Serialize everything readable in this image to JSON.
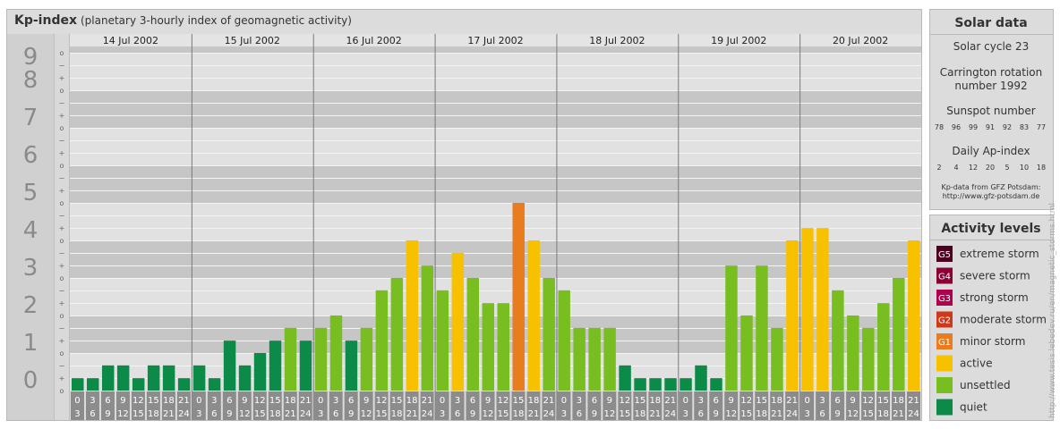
{
  "header": {
    "title": "Kp-index",
    "subtitle": "(planetary 3-hourly index of geomagnetic activity)"
  },
  "chart_data": {
    "type": "bar",
    "title": "Kp-index",
    "subtitle": "(planetary 3-hourly index of geomagnetic activity)",
    "ylim": [
      0,
      9.33
    ],
    "y_ticks": [
      "0",
      "1",
      "2",
      "3",
      "4",
      "5",
      "6",
      "7",
      "8",
      "9"
    ],
    "sub_ticks": [
      "o",
      "+",
      "−"
    ],
    "days": [
      "14 Jul 2002",
      "15 Jul 2002",
      "16 Jul 2002",
      "17 Jul 2002",
      "18 Jul 2002",
      "19 Jul 2002",
      "20 Jul 2002"
    ],
    "interval_top": [
      "0",
      "3",
      "6",
      "9",
      "12",
      "15",
      "18",
      "21"
    ],
    "interval_bottom": [
      "3",
      "6",
      "9",
      "12",
      "15",
      "18",
      "21",
      "24"
    ],
    "values": [
      0.33,
      0.33,
      0.67,
      0.67,
      0.33,
      0.67,
      0.67,
      0.33,
      0.67,
      0.33,
      1.33,
      0.67,
      1.0,
      1.33,
      1.67,
      1.33,
      1.67,
      2.0,
      1.33,
      1.67,
      2.67,
      3.0,
      4.0,
      3.33,
      2.67,
      3.67,
      3.0,
      2.33,
      2.33,
      5.0,
      4.0,
      3.0,
      2.67,
      1.67,
      1.67,
      1.67,
      0.67,
      0.33,
      0.33,
      0.33,
      0.33,
      0.67,
      0.33,
      3.33,
      2.0,
      3.33,
      1.67,
      4.0,
      4.33,
      4.33,
      2.67,
      2.0,
      1.67,
      2.33,
      3.0,
      4.0
    ],
    "grid": true
  },
  "solar": {
    "title": "Solar data",
    "cycle": "Solar cycle 23",
    "carrington_line1": "Carrington rotation",
    "carrington_line2": "number 1992",
    "sunspot_title": "Sunspot number",
    "sunspots": [
      "78",
      "96",
      "99",
      "91",
      "92",
      "83",
      "77"
    ],
    "ap_title": "Daily Ap-index",
    "ap": [
      "2",
      "4",
      "12",
      "20",
      "5",
      "10",
      "18"
    ],
    "source1": "Kp-data from GFZ Potsdam:",
    "source2": "http://www.gfz-potsdam.de"
  },
  "activity": {
    "title": "Activity levels",
    "levels": [
      {
        "badge": "G5",
        "label": "extreme storm",
        "color": "#4d0020"
      },
      {
        "badge": "G4",
        "label": "severe storm",
        "color": "#8a0033"
      },
      {
        "badge": "G3",
        "label": "strong storm",
        "color": "#b0004e"
      },
      {
        "badge": "G2",
        "label": "moderate storm",
        "color": "#d0381a"
      },
      {
        "badge": "G1",
        "label": "minor storm",
        "color": "#e87c1e"
      },
      {
        "badge": "",
        "label": "active",
        "color": "#f7c100"
      },
      {
        "badge": "",
        "label": "unsettled",
        "color": "#79be20"
      },
      {
        "badge": "",
        "label": "quiet",
        "color": "#0c8a47"
      }
    ]
  },
  "credit": "http://www.tesis.lebedev.ru/en/magnetic_storms.html"
}
